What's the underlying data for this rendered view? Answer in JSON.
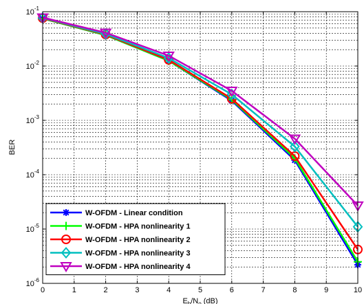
{
  "chart_data": {
    "type": "line",
    "title": "",
    "xlabel": "Eb/No (dB)",
    "ylabel": "BER",
    "x": [
      0,
      2,
      4,
      6,
      8,
      10
    ],
    "xlim": [
      0,
      10
    ],
    "ylim": [
      1e-06,
      0.1
    ],
    "yscale": "log",
    "grid": true,
    "legend_position": "bottom-left",
    "xticks": [
      "0",
      "1",
      "2",
      "3",
      "4",
      "5",
      "6",
      "7",
      "8",
      "9",
      "10"
    ],
    "yticks": [
      {
        "base": "10",
        "exp": "-1",
        "value": 0.1
      },
      {
        "base": "10",
        "exp": "-2",
        "value": 0.01
      },
      {
        "base": "10",
        "exp": "-3",
        "value": 0.001
      },
      {
        "base": "10",
        "exp": "-4",
        "value": 0.0001
      },
      {
        "base": "10",
        "exp": "-5",
        "value": 1e-05
      },
      {
        "base": "10",
        "exp": "-6",
        "value": 1e-06
      }
    ],
    "series": [
      {
        "name": "W-OFDM - Linear condition",
        "color": "#0000ff",
        "marker": "star",
        "values": [
          0.075,
          0.037,
          0.0125,
          0.0023,
          0.000185,
          2.2e-06
        ]
      },
      {
        "name": "W-OFDM - HPA nonlinearity 1",
        "color": "#00ff00",
        "marker": "plus",
        "values": [
          0.075,
          0.037,
          0.0125,
          0.0024,
          0.0002,
          2.5e-06
        ]
      },
      {
        "name": "W-OFDM - HPA nonlinearity 2",
        "color": "#ff0000",
        "marker": "circle",
        "values": [
          0.076,
          0.038,
          0.013,
          0.0025,
          0.00022,
          4.2e-06
        ]
      },
      {
        "name": "W-OFDM - HPA nonlinearity 3",
        "color": "#00bfbf",
        "marker": "diamond",
        "values": [
          0.077,
          0.039,
          0.014,
          0.003,
          0.00033,
          1.1e-05
        ]
      },
      {
        "name": "W-OFDM - HPA nonlinearity 4",
        "color": "#bf00bf",
        "marker": "triangle-down",
        "values": [
          0.078,
          0.041,
          0.0155,
          0.0035,
          0.00046,
          2.7e-05
        ]
      }
    ]
  }
}
